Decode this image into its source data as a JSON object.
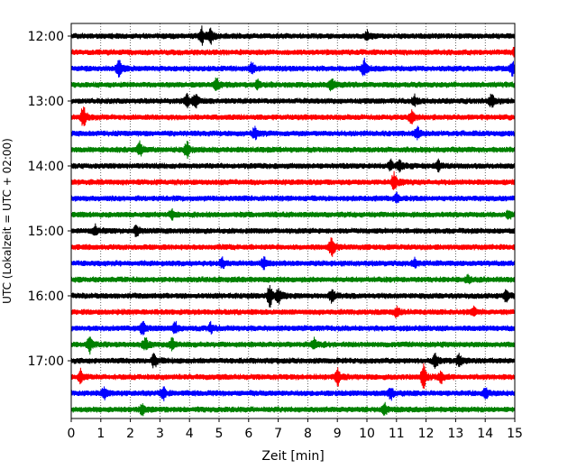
{
  "chart_data": {
    "type": "line",
    "title": "",
    "xlabel": "Zeit  [min]",
    "ylabel": "UTC (Lokalzeit = UTC + 02:00)",
    "xlim": [
      0,
      15
    ],
    "x_ticks": [
      0,
      1,
      2,
      3,
      4,
      5,
      6,
      7,
      8,
      9,
      10,
      11,
      12,
      13,
      14,
      15
    ],
    "y_tick_labels": [
      "12:00",
      "13:00",
      "14:00",
      "15:00",
      "16:00",
      "17:00"
    ],
    "grid": true,
    "legend": "none",
    "colors": [
      "#000000",
      "#ff0000",
      "#0000ff",
      "#008000"
    ],
    "traces": [
      {
        "start": "12:00",
        "color": "#000000",
        "events": [
          [
            4.4,
            0.7
          ],
          [
            4.7,
            0.6
          ],
          [
            10.0,
            0.4
          ]
        ]
      },
      {
        "start": "12:15",
        "color": "#ff0000",
        "events": [
          [
            15.0,
            0.6
          ]
        ]
      },
      {
        "start": "12:30",
        "color": "#0000ff",
        "events": [
          [
            1.6,
            0.7
          ],
          [
            6.1,
            0.5
          ],
          [
            9.9,
            0.7
          ],
          [
            14.9,
            0.6
          ]
        ]
      },
      {
        "start": "12:45",
        "color": "#008000",
        "events": [
          [
            4.9,
            0.6
          ],
          [
            6.3,
            0.4
          ],
          [
            8.8,
            0.6
          ]
        ]
      },
      {
        "start": "13:00",
        "color": "#000000",
        "events": [
          [
            3.9,
            0.6
          ],
          [
            4.2,
            0.6
          ],
          [
            11.6,
            0.4
          ],
          [
            14.2,
            0.6
          ]
        ]
      },
      {
        "start": "13:15",
        "color": "#ff0000",
        "events": [
          [
            0.4,
            1.0
          ],
          [
            11.5,
            0.5
          ]
        ]
      },
      {
        "start": "13:30",
        "color": "#0000ff",
        "events": [
          [
            6.2,
            0.5
          ],
          [
            11.7,
            0.5
          ]
        ]
      },
      {
        "start": "13:45",
        "color": "#008000",
        "events": [
          [
            2.3,
            0.6
          ],
          [
            3.9,
            0.7
          ]
        ]
      },
      {
        "start": "14:00",
        "color": "#000000",
        "events": [
          [
            10.8,
            0.4
          ],
          [
            11.1,
            0.5
          ],
          [
            12.4,
            0.4
          ]
        ]
      },
      {
        "start": "14:15",
        "color": "#ff0000",
        "events": [
          [
            10.9,
            0.8
          ]
        ]
      },
      {
        "start": "14:30",
        "color": "#0000ff",
        "events": [
          [
            11.0,
            0.4
          ]
        ]
      },
      {
        "start": "14:45",
        "color": "#008000",
        "events": [
          [
            3.4,
            0.4
          ],
          [
            14.8,
            0.4
          ]
        ]
      },
      {
        "start": "15:00",
        "color": "#000000",
        "events": [
          [
            0.8,
            0.4
          ],
          [
            2.2,
            0.5
          ]
        ]
      },
      {
        "start": "15:15",
        "color": "#ff0000",
        "events": [
          [
            8.8,
            0.9
          ]
        ]
      },
      {
        "start": "15:30",
        "color": "#0000ff",
        "events": [
          [
            5.1,
            0.4
          ],
          [
            6.5,
            0.5
          ],
          [
            11.6,
            0.4
          ]
        ]
      },
      {
        "start": "15:45",
        "color": "#008000",
        "events": [
          [
            13.4,
            0.3
          ]
        ]
      },
      {
        "start": "16:00",
        "color": "#000000",
        "events": [
          [
            6.7,
            1.0
          ],
          [
            7.0,
            0.6
          ],
          [
            8.8,
            0.6
          ],
          [
            14.7,
            0.5
          ]
        ]
      },
      {
        "start": "16:15",
        "color": "#ff0000",
        "events": [
          [
            11.0,
            0.4
          ],
          [
            13.6,
            0.4
          ]
        ]
      },
      {
        "start": "16:30",
        "color": "#0000ff",
        "events": [
          [
            2.4,
            0.6
          ],
          [
            3.5,
            0.5
          ],
          [
            4.7,
            0.4
          ]
        ]
      },
      {
        "start": "16:45",
        "color": "#008000",
        "events": [
          [
            0.6,
            0.7
          ],
          [
            2.5,
            0.5
          ],
          [
            3.4,
            0.5
          ],
          [
            8.2,
            0.5
          ]
        ]
      },
      {
        "start": "17:00",
        "color": "#000000",
        "events": [
          [
            2.8,
            0.6
          ],
          [
            12.3,
            0.6
          ],
          [
            13.1,
            0.5
          ]
        ]
      },
      {
        "start": "17:15",
        "color": "#ff0000",
        "events": [
          [
            0.3,
            0.6
          ],
          [
            9.0,
            0.7
          ],
          [
            11.9,
            1.0
          ],
          [
            12.5,
            0.5
          ]
        ]
      },
      {
        "start": "17:30",
        "color": "#0000ff",
        "events": [
          [
            1.1,
            0.5
          ],
          [
            3.1,
            0.5
          ],
          [
            10.8,
            0.5
          ],
          [
            14.0,
            0.4
          ]
        ]
      },
      {
        "start": "17:45",
        "color": "#008000",
        "events": [
          [
            2.4,
            0.4
          ],
          [
            10.6,
            0.4
          ]
        ]
      }
    ]
  }
}
